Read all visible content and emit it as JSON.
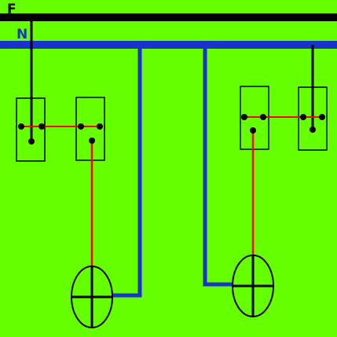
{
  "diagram": {
    "rails": {
      "phase": {
        "label": "F"
      },
      "neutral": {
        "label": "N"
      }
    },
    "colors": {
      "background": "#66ff00",
      "phase": "#000000",
      "neutral": "#1a33cc",
      "switch_wire": "#ff0000",
      "lamp": "#000000",
      "switch_box": "#000000"
    },
    "circuits": [
      {
        "id": "left",
        "switches": 2,
        "lamps": 1
      },
      {
        "id": "right",
        "switches": 2,
        "lamps": 1
      }
    ]
  }
}
